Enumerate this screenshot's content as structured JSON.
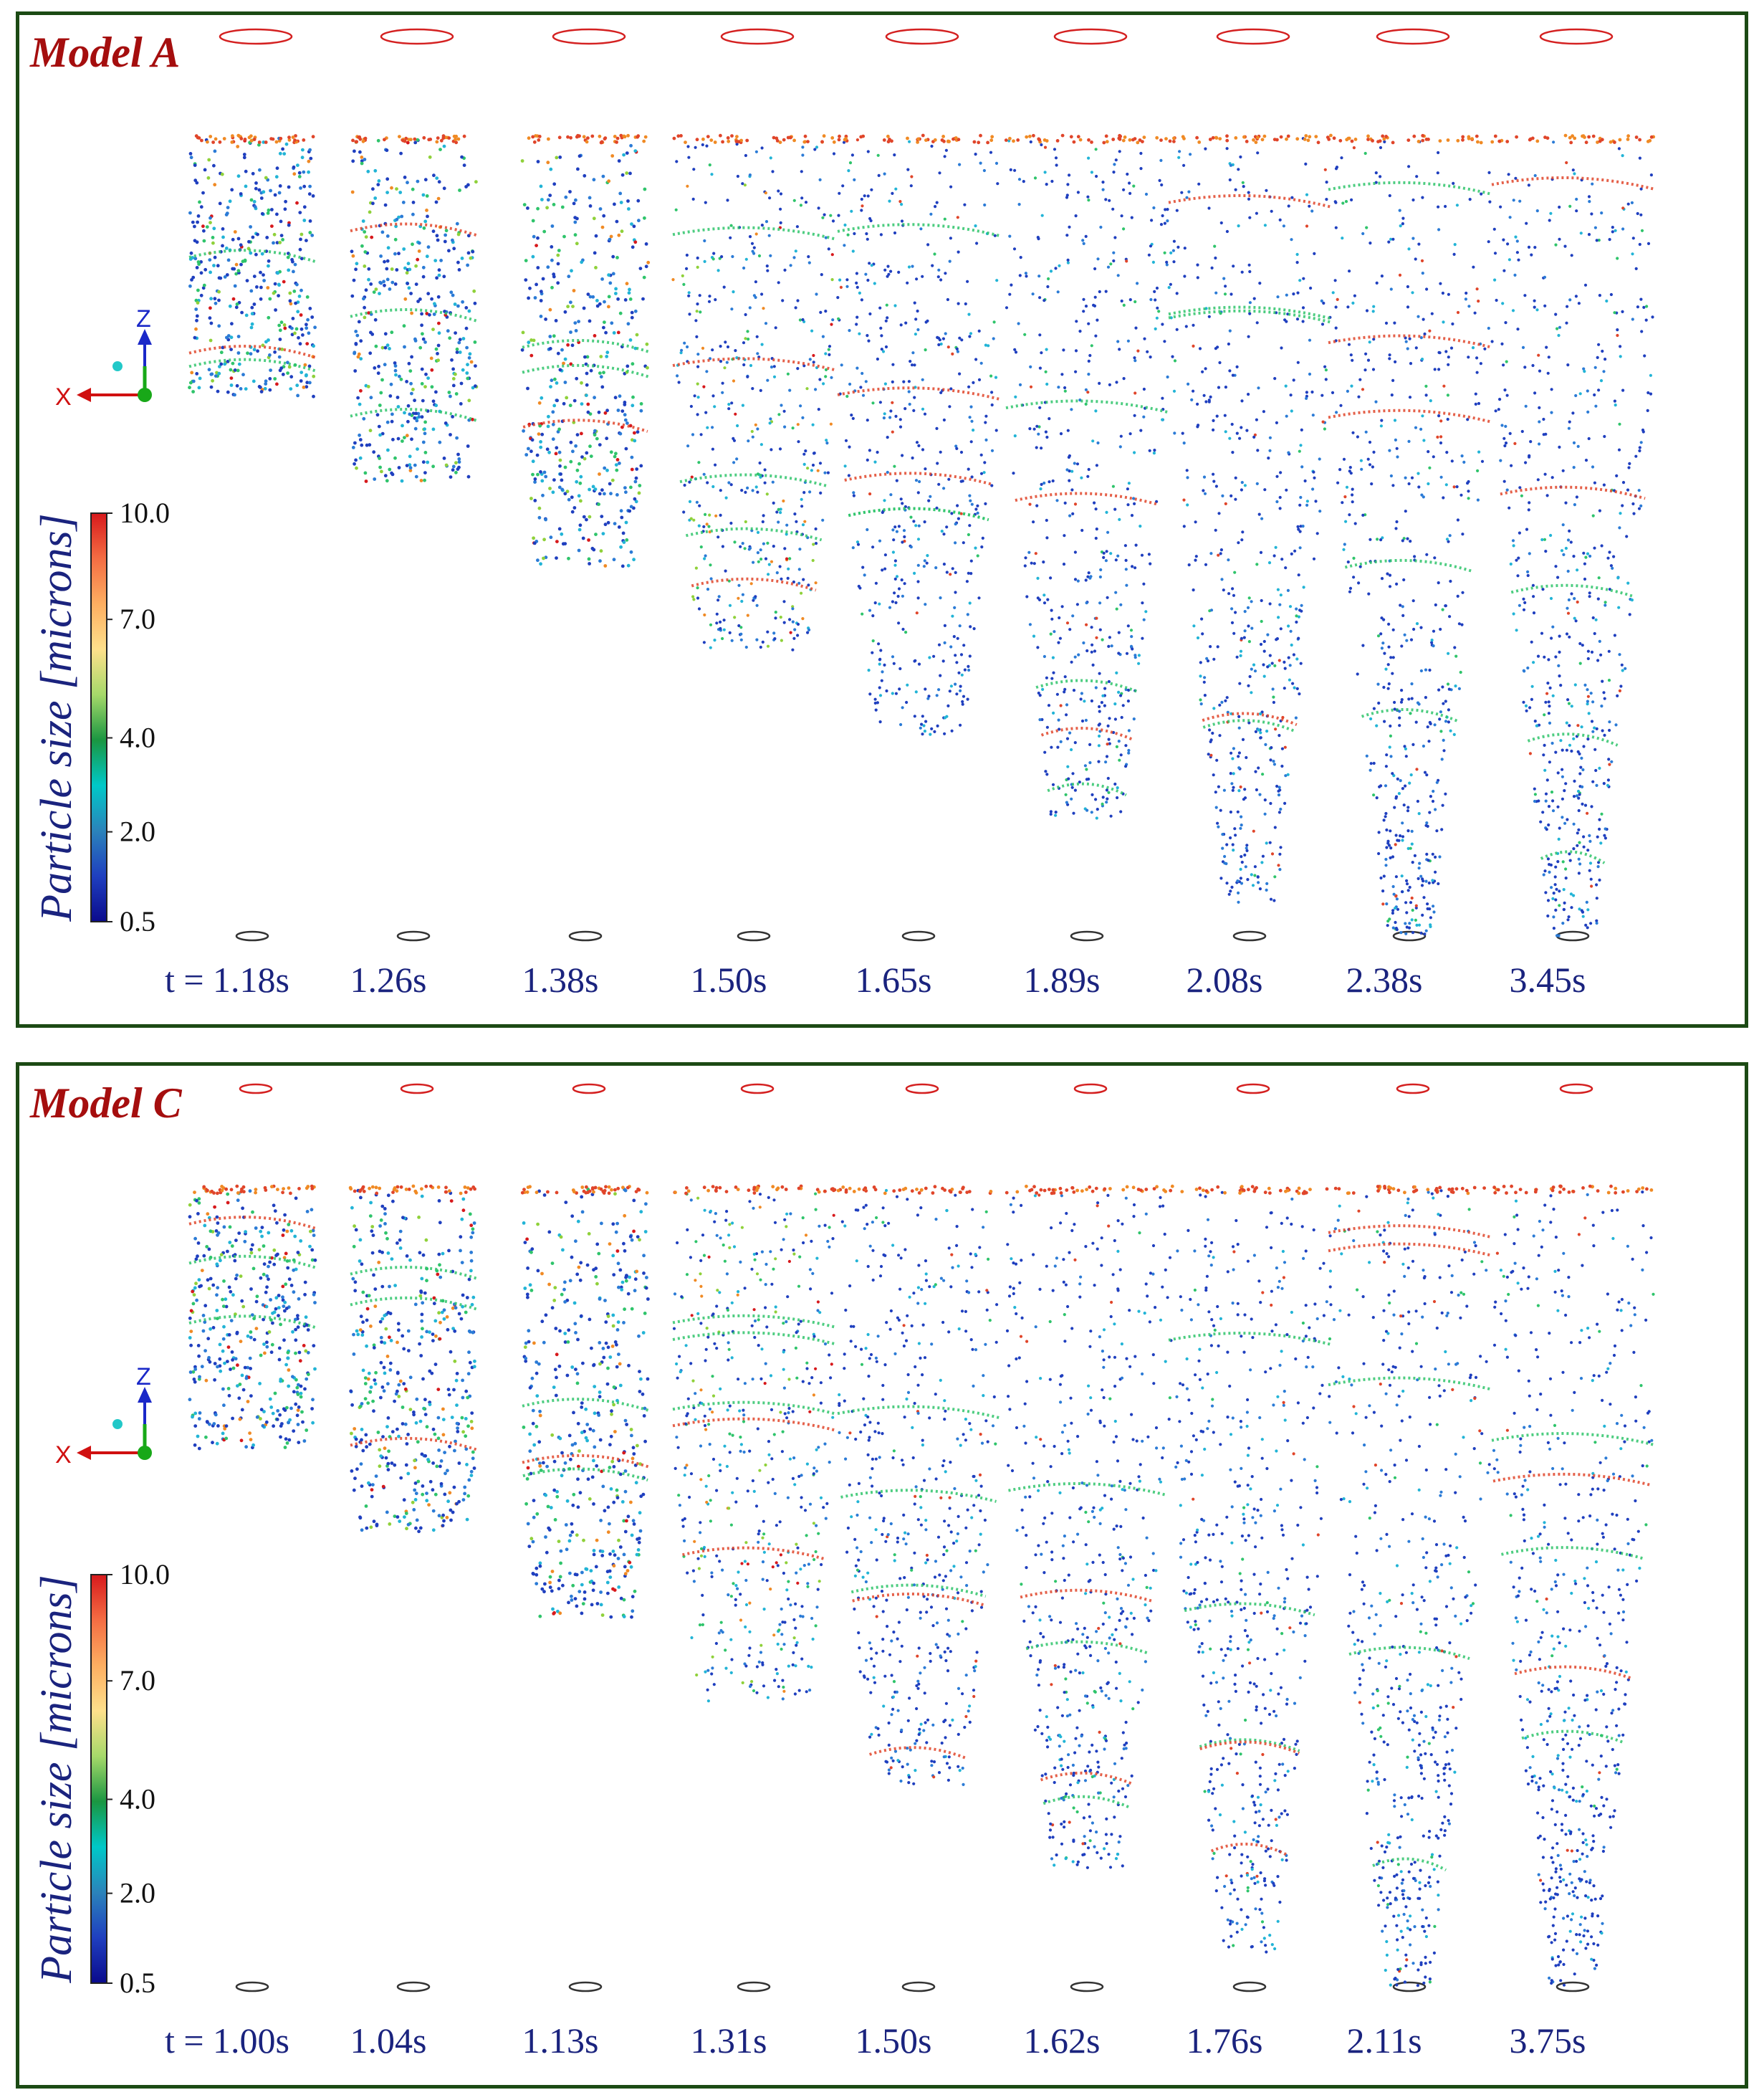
{
  "colorbar": {
    "title": "Particle size [microns]",
    "ticks": [
      "10.0",
      "7.0",
      "4.0",
      "2.0",
      "0.5"
    ],
    "colors": [
      "#d7191c",
      "#f46d43",
      "#fdae61",
      "#fee08b",
      "#a6d96a",
      "#1a9641",
      "#00c8c8",
      "#2b83ba",
      "#1f3fbf",
      "#0a0a8c"
    ]
  },
  "axes": {
    "z": "Z",
    "x": "X"
  },
  "panels": [
    {
      "title": "Model A",
      "time_prefix": "t =",
      "times": [
        "1.18s",
        "1.26s",
        "1.38s",
        "1.50s",
        "1.65s",
        "1.89s",
        "2.08s",
        "2.38s",
        "3.45s"
      ]
    },
    {
      "title": "Model C",
      "time_prefix": "t =",
      "times": [
        "1.00s",
        "1.04s",
        "1.13s",
        "1.31s",
        "1.50s",
        "1.62s",
        "1.76s",
        "2.11s",
        "3.75s"
      ]
    }
  ]
}
